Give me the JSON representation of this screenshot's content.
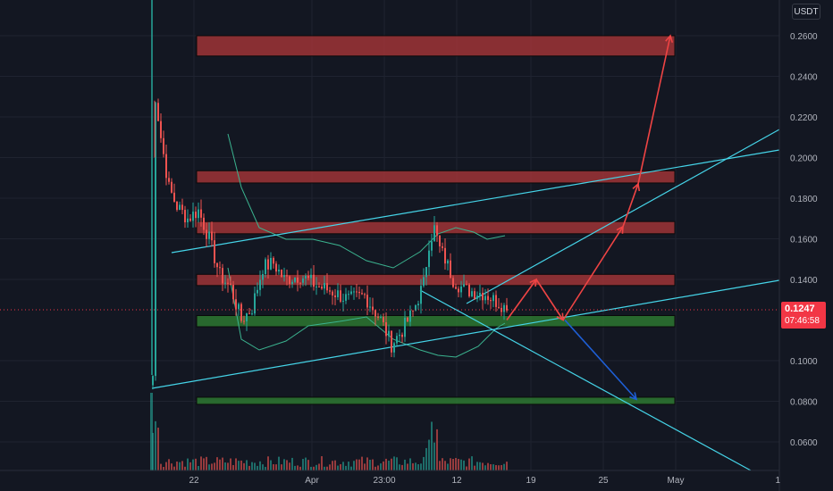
{
  "chart_data": {
    "type": "candlestick",
    "unit": "USDT",
    "y_range": [
      0.0485,
      0.279
    ],
    "y_ticks": [
      "0.2600",
      "0.2400",
      "0.2200",
      "0.2000",
      "0.1800",
      "0.1600",
      "0.1400",
      "0.1000",
      "0.0800",
      "0.0600"
    ],
    "x_ticks": [
      "22",
      "Apr",
      "23:00",
      "12",
      "19",
      "25",
      "May",
      "1"
    ],
    "last_price": "0.1247",
    "countdown": "07:46:58",
    "colors": {
      "up": "#26a69a",
      "down": "#ef5350",
      "resistance": "#b2383a",
      "support": "#2e7d32",
      "trendline": "#45d4e8",
      "bands": "#3bb38f",
      "arrow_up": "#ef4444",
      "arrow_down": "#1e5fd6",
      "background": "#131722",
      "grid": "#1f2330"
    },
    "resistance_zones": [
      [
        0.25,
        0.26
      ],
      [
        0.1875,
        0.1935
      ],
      [
        0.1625,
        0.1685
      ],
      [
        0.137,
        0.1425
      ]
    ],
    "support_zones": [
      [
        0.1167,
        0.1222
      ],
      [
        0.0785,
        0.082
      ]
    ],
    "projection_up": [
      0.12,
      0.14,
      0.12,
      0.166,
      0.187,
      0.26
    ],
    "projection_down": [
      0.12,
      0.081
    ]
  }
}
